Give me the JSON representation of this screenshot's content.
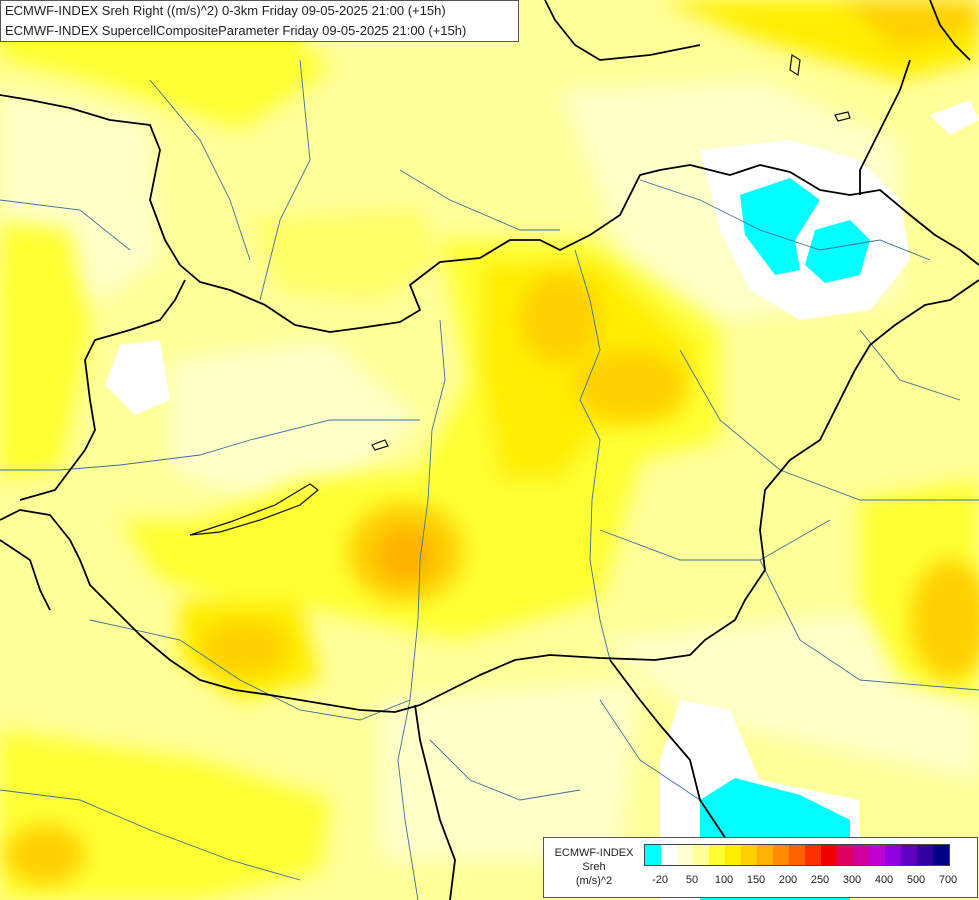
{
  "title": {
    "line1": "ECMWF-INDEX Sreh Right ((m/s)^2) 0-3km Friday 09-05-2025 21:00 (+15h)",
    "line2": "ECMWF-INDEX SupercellCompositeParameter Friday 09-05-2025 21:00 (+15h)"
  },
  "legend": {
    "model": "ECMWF-INDEX",
    "parameter": "Sreh",
    "unit": "(m/s)^2",
    "colors": [
      "#00ffff",
      "#ffffff",
      "#ffffd0",
      "#ffff99",
      "#ffff33",
      "#ffee00",
      "#ffd000",
      "#ffb000",
      "#ff8c00",
      "#ff6000",
      "#ff3000",
      "#ee0000",
      "#e00060",
      "#d000a0",
      "#c000d0",
      "#9000e0",
      "#6000c0",
      "#3000a0",
      "#000080"
    ],
    "ticks": [
      "-20",
      "50",
      "100",
      "150",
      "200",
      "250",
      "300",
      "400",
      "500",
      "700"
    ]
  }
}
